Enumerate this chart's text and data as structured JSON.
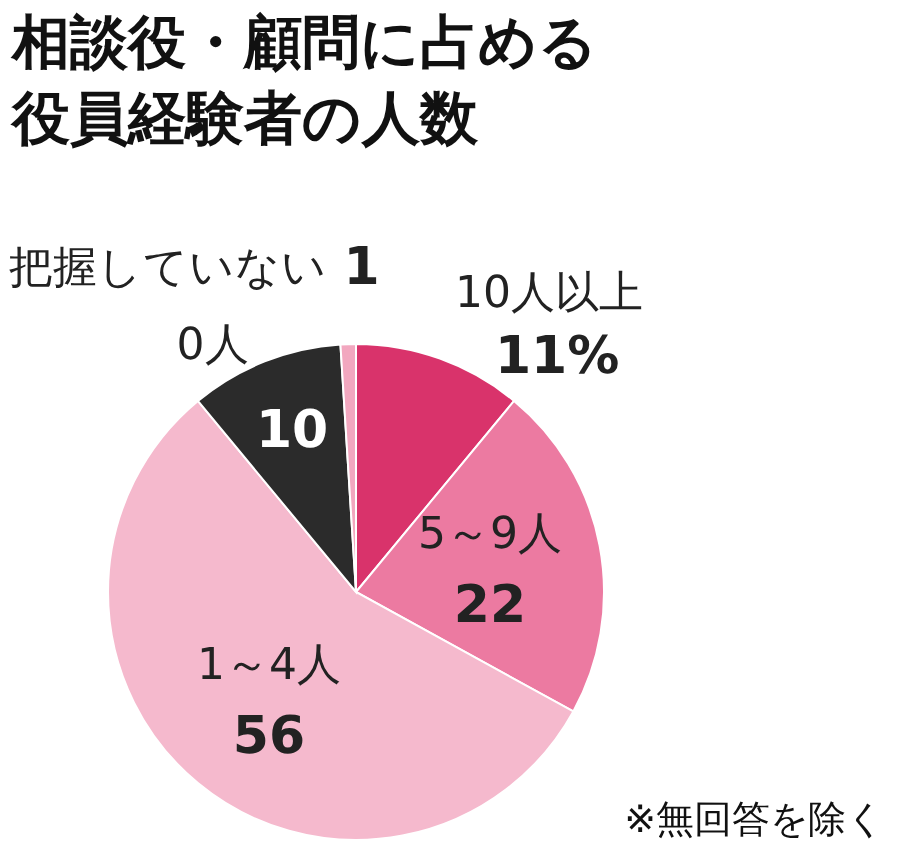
{
  "chart_data": {
    "type": "pie",
    "title": "相談役・顧問に占める役員経験者の人数",
    "categories": [
      "10人以上",
      "5～9人",
      "1～4人",
      "0人",
      "把握していない"
    ],
    "values": [
      11,
      22,
      56,
      10,
      1
    ],
    "colors": [
      "#d9336b",
      "#ec7aa1",
      "#f5b9cd",
      "#2b2b2b",
      "#f2a7bf"
    ],
    "value_labels": [
      "11%",
      "22",
      "56",
      "10",
      "1"
    ],
    "annotations": [
      "※無回答を除く"
    ]
  }
}
